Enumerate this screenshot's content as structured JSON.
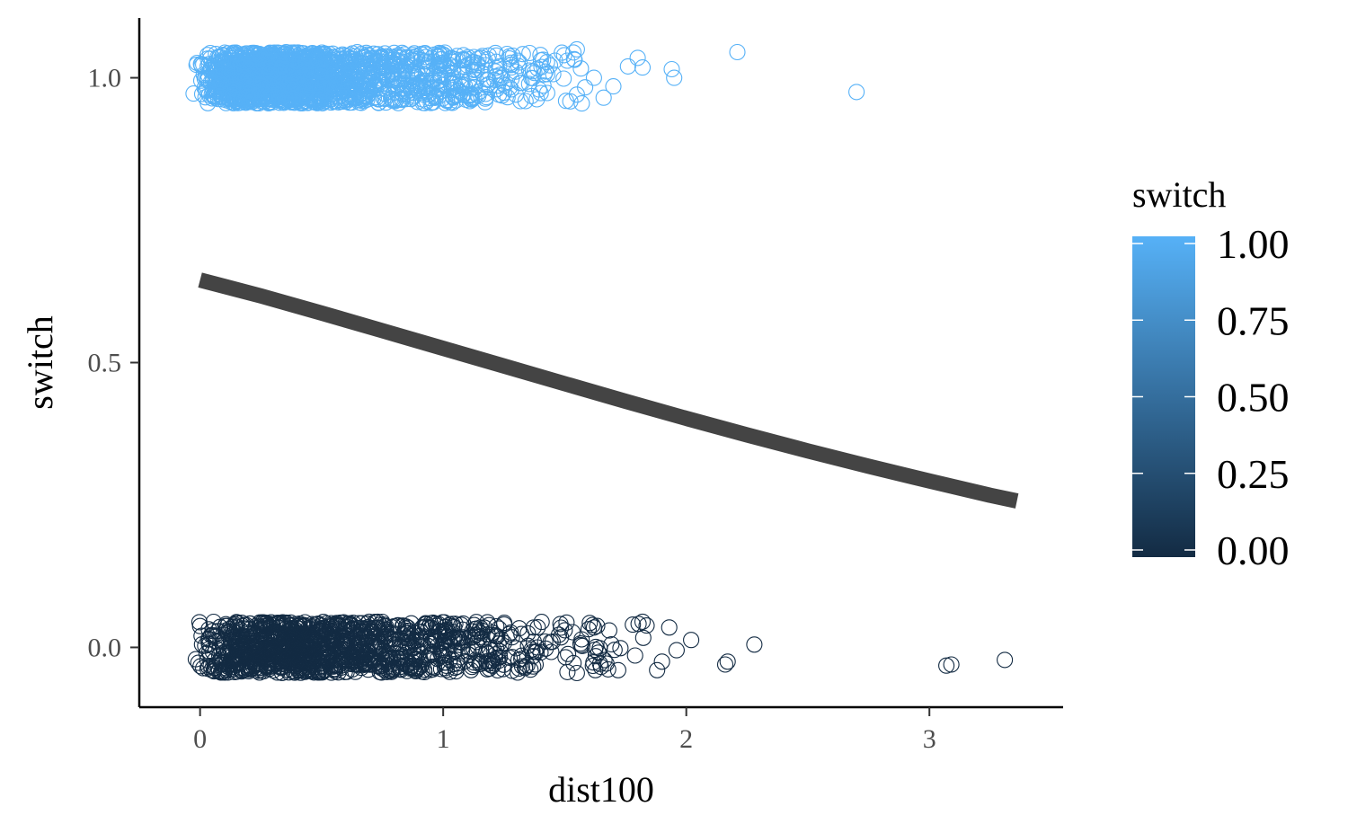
{
  "chart_data": {
    "type": "scatter",
    "title": "",
    "xlabel": "dist100",
    "ylabel": "switch",
    "xlim": [
      -0.25,
      3.55
    ],
    "ylim": [
      -0.105,
      1.105
    ],
    "x_ticks": [
      0,
      1,
      2,
      3
    ],
    "x_tick_labels": [
      "0",
      "1",
      "2",
      "3"
    ],
    "y_ticks": [
      0,
      0.5,
      1
    ],
    "y_tick_labels": [
      "0.0",
      "0.5",
      "1.0"
    ],
    "grid": false,
    "legend": {
      "title": "switch",
      "type": "colorbar",
      "placement": "right",
      "low_color": "#132B43",
      "high_color": "#56B1F7",
      "breaks": [
        0,
        0.25,
        0.5,
        0.75,
        1
      ],
      "labels": [
        "0.00",
        "0.25",
        "0.50",
        "0.75",
        "1.00"
      ]
    },
    "series": [
      {
        "kind": "points",
        "jitter": true,
        "marker": "open-circle",
        "points": [
          [
            2.21,
            1.045
          ],
          [
            2.7,
            0.975
          ],
          [
            1.94,
            1.015
          ],
          [
            1.95,
            1.0
          ],
          [
            1.8,
            1.035
          ],
          [
            1.82,
            1.018
          ],
          [
            1.76,
            1.02
          ],
          [
            1.55,
            1.05
          ],
          [
            1.7,
            0.985
          ],
          [
            1.66,
            0.965
          ],
          [
            1.57,
            0.955
          ],
          [
            1.62,
            1.0
          ],
          [
            1.46,
            1.03
          ],
          [
            1.4,
            1.04
          ],
          [
            2.28,
            0.005
          ],
          [
            2.16,
            -0.03
          ],
          [
            2.17,
            -0.025
          ],
          [
            2.02,
            0.013
          ],
          [
            3.07,
            -0.032
          ],
          [
            3.09,
            -0.03
          ],
          [
            3.31,
            -0.022
          ],
          [
            1.93,
            0.035
          ],
          [
            1.96,
            -0.005
          ],
          [
            1.82,
            0.045
          ],
          [
            1.78,
            0.04
          ],
          [
            1.88,
            -0.04
          ],
          [
            1.9,
            -0.025
          ],
          [
            1.72,
            -0.04
          ],
          [
            1.62,
            0.035
          ],
          [
            1.55,
            -0.045
          ],
          [
            1.5,
            0.03
          ],
          [
            1.38,
            -0.03
          ],
          [
            1.45,
            0.01
          ]
        ]
      },
      {
        "kind": "line",
        "name": "",
        "color": "#444444",
        "x": [
          0,
          0.25,
          0.5,
          0.75,
          1.0,
          1.25,
          1.5,
          1.75,
          2.0,
          2.25,
          2.5,
          2.75,
          3.0,
          3.25,
          3.36
        ],
        "y": [
          0.645,
          0.617,
          0.587,
          0.556,
          0.525,
          0.494,
          0.463,
          0.432,
          0.402,
          0.373,
          0.345,
          0.318,
          0.292,
          0.267,
          0.257
        ]
      }
    ]
  }
}
